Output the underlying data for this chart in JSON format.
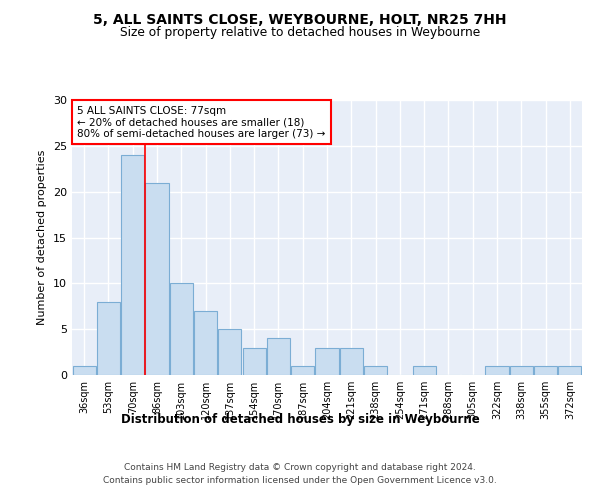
{
  "title": "5, ALL SAINTS CLOSE, WEYBOURNE, HOLT, NR25 7HH",
  "subtitle": "Size of property relative to detached houses in Weybourne",
  "xlabel": "Distribution of detached houses by size in Weybourne",
  "ylabel": "Number of detached properties",
  "bar_color": "#c9ddf0",
  "bar_edge_color": "#7badd4",
  "categories": [
    "36sqm",
    "53sqm",
    "70sqm",
    "86sqm",
    "103sqm",
    "120sqm",
    "137sqm",
    "154sqm",
    "170sqm",
    "187sqm",
    "204sqm",
    "221sqm",
    "238sqm",
    "254sqm",
    "271sqm",
    "288sqm",
    "305sqm",
    "322sqm",
    "338sqm",
    "355sqm",
    "372sqm"
  ],
  "values": [
    1,
    8,
    24,
    21,
    10,
    7,
    5,
    3,
    4,
    1,
    3,
    3,
    1,
    0,
    1,
    0,
    0,
    1,
    1,
    1,
    1
  ],
  "ylim": [
    0,
    30
  ],
  "yticks": [
    0,
    5,
    10,
    15,
    20,
    25,
    30
  ],
  "annotation_line1": "5 ALL SAINTS CLOSE: 77sqm",
  "annotation_line2": "← 20% of detached houses are smaller (18)",
  "annotation_line3": "80% of semi-detached houses are larger (73) →",
  "vline_bin_index": 3,
  "background_color": "#e8eef8",
  "footer_line1": "Contains HM Land Registry data © Crown copyright and database right 2024.",
  "footer_line2": "Contains public sector information licensed under the Open Government Licence v3.0."
}
